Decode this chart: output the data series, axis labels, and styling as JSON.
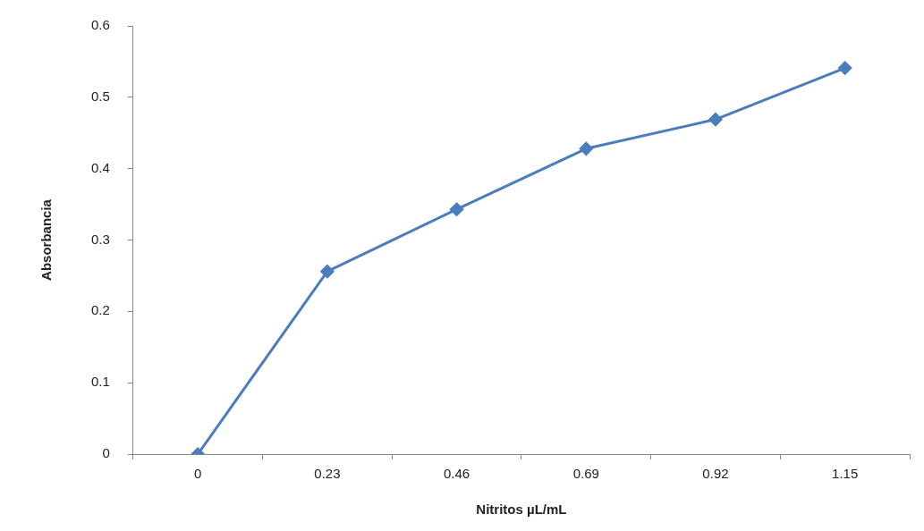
{
  "chart_data": {
    "type": "line",
    "xlabel": "Nitritos µL/mL",
    "ylabel": "Absorbancia",
    "categories": [
      "0",
      "0.23",
      "0.46",
      "0.69",
      "0.92",
      "1.15"
    ],
    "series": [
      {
        "color": "#4a7ebb",
        "values": [
          0,
          0.256,
          0.343,
          0.428,
          0.469,
          0.541
        ]
      }
    ],
    "ylim": [
      0,
      0.6
    ],
    "yticks": [
      0,
      0.1,
      0.2,
      0.3,
      0.4,
      0.5,
      0.6
    ],
    "grid": false,
    "legend": false,
    "marker": "diamond",
    "line_style": "solid"
  }
}
